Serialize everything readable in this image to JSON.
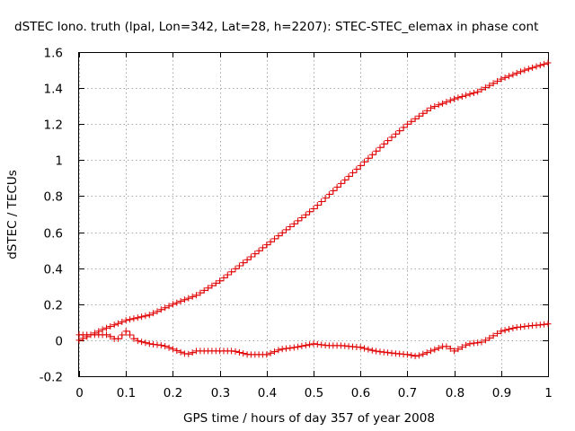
{
  "chart_data": {
    "type": "line",
    "title": "dSTEC Iono. truth (lpal, Lon=342, Lat=28, h=2207): STEC-STEC_elemax in phase cont",
    "xlabel": "GPS time / hours of day 357 of year 2008",
    "ylabel": "dSTEC  / TECUs",
    "xlim": [
      0,
      1
    ],
    "ylim": [
      -0.2,
      1.6
    ],
    "x_ticks": [
      "0",
      "0.1",
      "0.2",
      "0.3",
      "0.4",
      "0.5",
      "0.6",
      "0.7",
      "0.8",
      "0.9",
      "1"
    ],
    "y_ticks": [
      "-0.2",
      "0",
      "0.2",
      "0.4",
      "0.6",
      "0.8",
      "1",
      "1.2",
      "1.4",
      "1.6"
    ],
    "grid": true,
    "legend": "none",
    "marker": "plus",
    "color": "#e00000",
    "series": [
      {
        "values_x": [
          0.0,
          0.05,
          0.1,
          0.15,
          0.2,
          0.25,
          0.3,
          0.35,
          0.4,
          0.45,
          0.5,
          0.55,
          0.6,
          0.65,
          0.7,
          0.75,
          0.8,
          0.85,
          0.9,
          0.95,
          1.0
        ],
        "values_y": [
          0.0,
          0.06,
          0.11,
          0.14,
          0.2,
          0.25,
          0.33,
          0.43,
          0.53,
          0.63,
          0.73,
          0.85,
          0.97,
          1.09,
          1.2,
          1.29,
          1.34,
          1.38,
          1.45,
          1.5,
          1.54
        ]
      },
      {
        "values_x": [
          0.0,
          0.03,
          0.06,
          0.08,
          0.1,
          0.12,
          0.15,
          0.18,
          0.2,
          0.23,
          0.25,
          0.28,
          0.33,
          0.36,
          0.4,
          0.43,
          0.46,
          0.5,
          0.53,
          0.56,
          0.6,
          0.63,
          0.66,
          0.7,
          0.72,
          0.75,
          0.78,
          0.8,
          0.83,
          0.86,
          0.88,
          0.9,
          0.93,
          0.96,
          1.0
        ],
        "values_y": [
          0.03,
          0.03,
          0.03,
          0.0,
          0.05,
          0.0,
          -0.02,
          -0.03,
          -0.05,
          -0.08,
          -0.06,
          -0.06,
          -0.06,
          -0.08,
          -0.08,
          -0.05,
          -0.04,
          -0.02,
          -0.03,
          -0.03,
          -0.04,
          -0.06,
          -0.07,
          -0.08,
          -0.09,
          -0.06,
          -0.03,
          -0.06,
          -0.02,
          -0.01,
          0.02,
          0.05,
          0.07,
          0.08,
          0.09
        ]
      }
    ]
  }
}
